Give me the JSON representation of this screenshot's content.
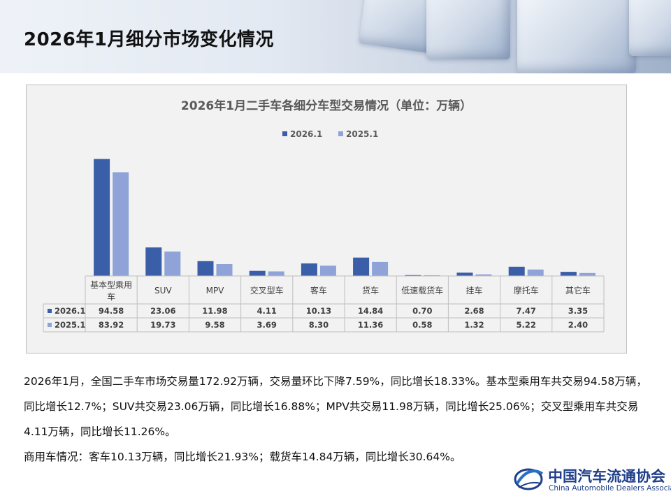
{
  "page": {
    "title": "2026年1月细分市场变化情况"
  },
  "chart_data": {
    "type": "bar",
    "title": "2026年1月二手车各细分车型交易情况（单位：万辆）",
    "categories": [
      "基本型乘用车",
      "SUV",
      "MPV",
      "交叉型车",
      "客车",
      "货车",
      "低速载货车",
      "挂车",
      "摩托车",
      "其它车"
    ],
    "series": [
      {
        "name": "2026.1",
        "color": "#3a5ea8",
        "values": [
          94.58,
          23.06,
          11.98,
          4.11,
          10.13,
          14.84,
          0.7,
          2.68,
          7.47,
          3.35
        ]
      },
      {
        "name": "2025.1",
        "color": "#8fa3d8",
        "values": [
          83.92,
          19.73,
          9.58,
          3.69,
          8.3,
          11.36,
          0.58,
          1.32,
          5.22,
          2.4
        ]
      }
    ],
    "value_labels": [
      [
        "94.58",
        "23.06",
        "11.98",
        "4.11",
        "10.13",
        "14.84",
        "0.70",
        "2.68",
        "7.47",
        "3.35"
      ],
      [
        "83.92",
        "19.73",
        "9.58",
        "3.69",
        "8.30",
        "11.36",
        "0.58",
        "1.32",
        "5.22",
        "2.40"
      ]
    ],
    "legend_position": "top",
    "data_table": true,
    "grid": false,
    "xlabel": "",
    "ylabel": ""
  },
  "body": {
    "para1": "2026年1月，全国二手车市场交易量172.92万辆，交易量环比下降7.59%，同比增长18.33%。基本型乘用车共交易94.58万辆，同比增长12.7%；SUV共交易23.06万辆，同比增长16.88%；MPV共交易11.98万辆，同比增长25.06%；交叉型乘用车共交易4.11万辆，同比增长11.26%。",
    "para2": "商用车情况：客车10.13万辆，同比增长21.93%；载货车14.84万辆，同比增长30.64%。"
  },
  "logo": {
    "name_cn": "中国汽车流通协会",
    "name_en": "China Automobile Dealers Association",
    "mark": "CADA"
  }
}
